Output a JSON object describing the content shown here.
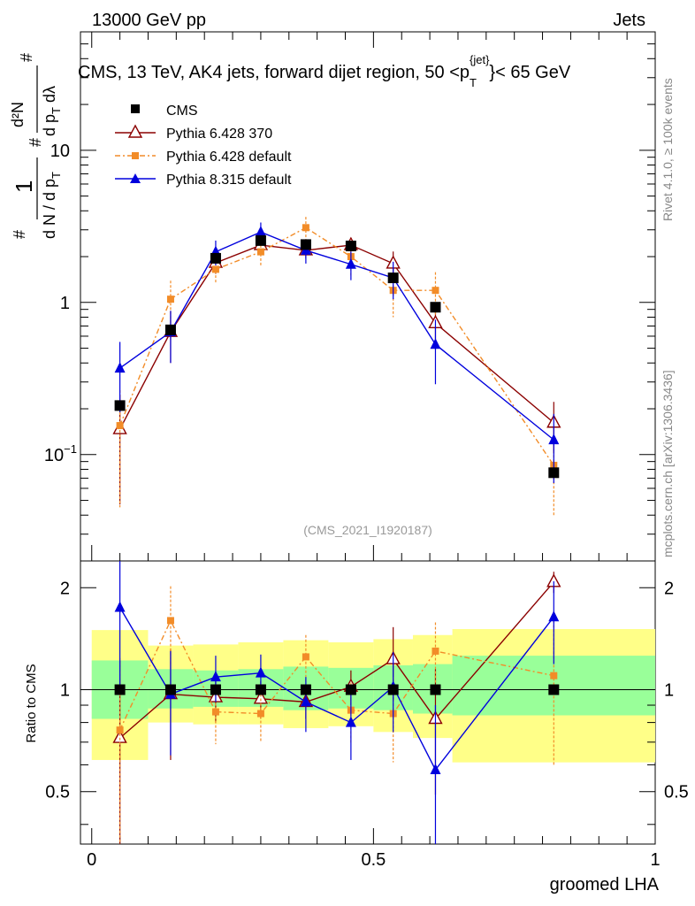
{
  "header": {
    "left": "13000 GeV pp",
    "right": "Jets",
    "title": "CMS, 13 TeV, AK4 jets, forward dijet region, 50 <p",
    "title_sup": "{jet}",
    "title_sub": "T",
    "title_end": "}< 65 GeV",
    "watermark": "(CMS_2021_I1920187)",
    "side_rivet": "Rivet 4.1.0, ≥ 100k events",
    "side_mcplots": "mcplots.cern.ch [arXiv:1306.3436]"
  },
  "axes": {
    "ylabel_top": {
      "lhs1": "1",
      "lhs2": "d N / d p",
      "lhs2_sub": "T",
      "rhs_num": "d²N",
      "rhs_den": "d p",
      "rhs_den_sub": "T",
      "rhs_den_end": " dλ",
      "hash": "#"
    },
    "ylabel_bottom": "Ratio to CMS",
    "xlabel": "groomed LHA",
    "top_ticks": [
      {
        "v": 0.1,
        "label": "10",
        "sup": "−1"
      },
      {
        "v": 1,
        "label": "1",
        "sup": ""
      },
      {
        "v": 10,
        "label": "10",
        "sup": ""
      }
    ],
    "bottom_ticks": [
      {
        "v": 0.5,
        "label": "0.5"
      },
      {
        "v": 1,
        "label": "1"
      },
      {
        "v": 2,
        "label": "2"
      }
    ],
    "x_ticks": [
      {
        "v": 0,
        "label": "0"
      },
      {
        "v": 0.5,
        "label": "0.5"
      },
      {
        "v": 1,
        "label": "1"
      }
    ]
  },
  "legend": [
    {
      "label": "CMS"
    },
    {
      "label": "Pythia 6.428 370"
    },
    {
      "label": "Pythia 6.428 default"
    },
    {
      "label": "Pythia 8.315 default"
    }
  ],
  "colors": {
    "data": "#000000",
    "p6_370": "#8b0000",
    "p6_default": "#f28c28",
    "p8": "#0000dd",
    "band_inner": "#99ff99",
    "band_outer": "#ffff88"
  },
  "chart_data": {
    "type": "scatter",
    "x": [
      0.05,
      0.14,
      0.22,
      0.3,
      0.38,
      0.46,
      0.535,
      0.61,
      0.82
    ],
    "xlim": [
      -0.02,
      1.0
    ],
    "ylim_top": [
      0.02,
      60
    ],
    "ylim_ratio": [
      0.35,
      2.4
    ],
    "bins": [
      [
        0,
        0.1
      ],
      [
        0.1,
        0.18
      ],
      [
        0.18,
        0.26
      ],
      [
        0.26,
        0.34
      ],
      [
        0.34,
        0.42
      ],
      [
        0.42,
        0.5
      ],
      [
        0.5,
        0.57
      ],
      [
        0.57,
        0.64
      ],
      [
        0.64,
        1.0
      ]
    ],
    "band_inner": [
      [
        0.82,
        1.22
      ],
      [
        0.88,
        1.15
      ],
      [
        0.89,
        1.14
      ],
      [
        0.89,
        1.15
      ],
      [
        0.87,
        1.17
      ],
      [
        0.88,
        1.16
      ],
      [
        0.87,
        1.18
      ],
      [
        0.85,
        1.19
      ],
      [
        0.84,
        1.26
      ]
    ],
    "band_outer": [
      [
        0.62,
        1.5
      ],
      [
        0.8,
        1.35
      ],
      [
        0.79,
        1.36
      ],
      [
        0.79,
        1.38
      ],
      [
        0.77,
        1.4
      ],
      [
        0.78,
        1.38
      ],
      [
        0.75,
        1.41
      ],
      [
        0.72,
        1.45
      ],
      [
        0.61,
        1.51
      ]
    ],
    "series": [
      {
        "name": "CMS",
        "values": [
          0.21,
          0.66,
          1.95,
          2.55,
          2.4,
          2.35,
          1.45,
          0.93,
          0.076
        ],
        "ratio": [
          1,
          1,
          1,
          1,
          1,
          1,
          1,
          1,
          1
        ],
        "ratio_err": [
          0,
          0,
          0,
          0,
          0,
          0,
          0,
          0,
          0
        ],
        "err": [
          0.012,
          0.03,
          0.09,
          0.11,
          0.1,
          0.1,
          0.07,
          0.06,
          0.005
        ]
      },
      {
        "name": "Pythia 6.428 370",
        "values": [
          0.147,
          0.64,
          1.82,
          2.38,
          2.2,
          2.38,
          1.8,
          0.73,
          0.162
        ],
        "err": [
          0.1,
          0.24,
          0.28,
          0.28,
          0.26,
          0.28,
          0.36,
          0.24,
          0.06
        ],
        "ratio": [
          0.72,
          0.97,
          0.95,
          0.94,
          0.92,
          1.02,
          1.23,
          0.82,
          2.08
        ],
        "ratio_err": [
          0.5,
          0.35,
          0.15,
          0.12,
          0.1,
          0.12,
          0.3,
          0.33,
          0.15
        ]
      },
      {
        "name": "Pythia 6.428 default",
        "values": [
          0.155,
          1.05,
          1.65,
          2.15,
          3.1,
          2.0,
          1.2,
          1.2,
          0.085
        ],
        "err": [
          0.11,
          0.34,
          0.32,
          0.4,
          0.55,
          0.5,
          0.4,
          0.38,
          0.045
        ],
        "ratio": [
          0.76,
          1.6,
          0.86,
          0.85,
          1.25,
          0.87,
          0.85,
          1.3,
          1.1
        ],
        "ratio_err": [
          0.48,
          0.42,
          0.17,
          0.15,
          0.2,
          0.18,
          0.24,
          0.28,
          0.5
        ]
      },
      {
        "name": "Pythia 8.315 default",
        "values": [
          0.37,
          0.64,
          2.15,
          2.9,
          2.2,
          1.78,
          1.45,
          0.53,
          0.125
        ],
        "err": [
          0.18,
          0.24,
          0.4,
          0.45,
          0.4,
          0.38,
          0.4,
          0.24,
          0.06
        ],
        "ratio": [
          1.75,
          0.97,
          1.09,
          1.12,
          0.92,
          0.8,
          1.02,
          0.58,
          1.64
        ],
        "ratio_err": [
          0.75,
          0.33,
          0.17,
          0.15,
          0.17,
          0.18,
          0.27,
          0.32,
          0.45
        ]
      }
    ]
  }
}
